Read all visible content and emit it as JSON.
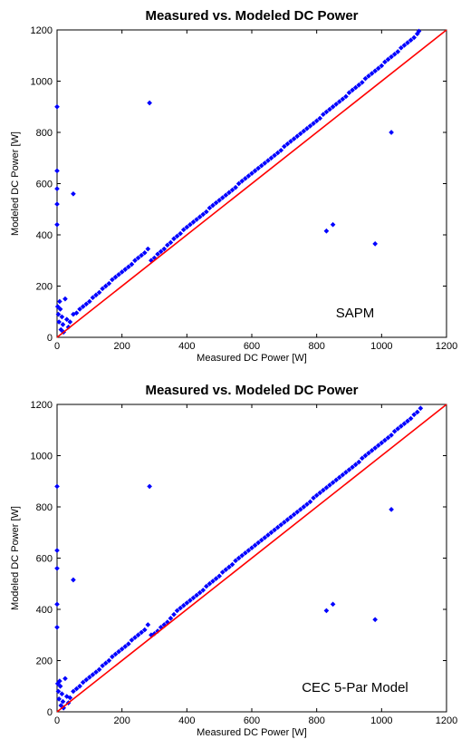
{
  "chart_data": [
    {
      "type": "scatter",
      "title": "Measured vs. Modeled DC Power",
      "xlabel": "Measured DC Power [W]",
      "ylabel": "Modeled DC Power [W]",
      "xlim": [
        0,
        1200
      ],
      "ylim": [
        0,
        1200
      ],
      "xticks": [
        "0",
        "200",
        "400",
        "600",
        "800",
        "1000",
        "1200"
      ],
      "yticks": [
        "0",
        "200",
        "400",
        "600",
        "800",
        "1000",
        "1200"
      ],
      "annotation": "SAPM",
      "grid": false,
      "colors": {
        "points": "#0000ff",
        "reference_line": "#ff0000"
      },
      "reference_line": {
        "x": [
          0,
          1200
        ],
        "y": [
          0,
          1200
        ]
      },
      "series": [
        {
          "x": [
            0,
            0,
            0,
            0,
            0,
            2,
            4,
            6,
            8,
            10,
            12,
            15,
            18,
            20,
            25,
            30,
            35,
            40,
            50,
            60,
            70,
            80,
            90,
            100,
            110,
            120,
            130,
            140,
            150,
            160,
            170,
            180,
            190,
            200,
            210,
            220,
            230,
            240,
            250,
            260,
            270,
            280,
            290,
            300,
            310,
            320,
            330,
            340,
            350,
            360,
            370,
            380,
            390,
            400,
            410,
            420,
            430,
            440,
            450,
            460,
            470,
            480,
            490,
            500,
            510,
            520,
            530,
            540,
            550,
            560,
            570,
            580,
            590,
            600,
            610,
            620,
            630,
            640,
            650,
            660,
            670,
            680,
            690,
            700,
            710,
            720,
            730,
            740,
            750,
            760,
            770,
            780,
            790,
            800,
            810,
            820,
            830,
            840,
            850,
            860,
            870,
            880,
            890,
            900,
            910,
            920,
            930,
            940,
            950,
            960,
            970,
            980,
            990,
            1000,
            1010,
            1020,
            1030,
            1040,
            1050,
            1060,
            1070,
            1080,
            1090,
            1100,
            1110,
            1115,
            285,
            50,
            980,
            830,
            850,
            1030
          ],
          "y": [
            900,
            650,
            580,
            520,
            440,
            120,
            90,
            60,
            140,
            110,
            30,
            80,
            50,
            20,
            150,
            70,
            40,
            60,
            90,
            95,
            110,
            120,
            130,
            140,
            155,
            165,
            175,
            190,
            200,
            210,
            225,
            235,
            245,
            255,
            265,
            275,
            285,
            300,
            310,
            320,
            330,
            345,
            300,
            310,
            325,
            335,
            345,
            360,
            370,
            385,
            395,
            405,
            420,
            430,
            440,
            450,
            460,
            470,
            480,
            490,
            505,
            515,
            525,
            535,
            545,
            555,
            565,
            575,
            585,
            600,
            610,
            620,
            630,
            640,
            650,
            660,
            670,
            680,
            690,
            700,
            710,
            720,
            730,
            745,
            755,
            765,
            775,
            785,
            795,
            805,
            815,
            825,
            835,
            845,
            855,
            870,
            880,
            890,
            900,
            910,
            920,
            930,
            940,
            955,
            965,
            975,
            985,
            995,
            1010,
            1020,
            1030,
            1040,
            1050,
            1060,
            1075,
            1085,
            1095,
            1105,
            1115,
            1130,
            1140,
            1150,
            1160,
            1170,
            1185,
            1195,
            915,
            560,
            365,
            415,
            440,
            800
          ]
        }
      ]
    },
    {
      "type": "scatter",
      "title": "Measured vs. Modeled DC Power",
      "xlabel": "Measured DC Power [W]",
      "ylabel": "Modeled DC Power [W]",
      "xlim": [
        0,
        1200
      ],
      "ylim": [
        0,
        1200
      ],
      "xticks": [
        "0",
        "200",
        "400",
        "600",
        "800",
        "1000",
        "1200"
      ],
      "yticks": [
        "0",
        "200",
        "400",
        "600",
        "800",
        "1000",
        "1200"
      ],
      "annotation": "CEC 5-Par Model",
      "grid": false,
      "colors": {
        "points": "#0000ff",
        "reference_line": "#ff0000"
      },
      "reference_line": {
        "x": [
          0,
          1200
        ],
        "y": [
          0,
          1200
        ]
      },
      "series": [
        {
          "x": [
            0,
            0,
            0,
            0,
            0,
            2,
            4,
            6,
            8,
            10,
            12,
            15,
            18,
            20,
            25,
            30,
            35,
            40,
            50,
            60,
            70,
            80,
            90,
            100,
            110,
            120,
            130,
            140,
            150,
            160,
            170,
            180,
            190,
            200,
            210,
            220,
            230,
            240,
            250,
            260,
            270,
            280,
            290,
            300,
            310,
            320,
            330,
            340,
            350,
            360,
            370,
            380,
            390,
            400,
            410,
            420,
            430,
            440,
            450,
            460,
            470,
            480,
            490,
            500,
            510,
            520,
            530,
            540,
            550,
            560,
            570,
            580,
            590,
            600,
            610,
            620,
            630,
            640,
            650,
            660,
            670,
            680,
            690,
            700,
            710,
            720,
            730,
            740,
            750,
            760,
            770,
            780,
            790,
            800,
            810,
            820,
            830,
            840,
            850,
            860,
            870,
            880,
            890,
            900,
            910,
            920,
            930,
            940,
            950,
            960,
            970,
            980,
            990,
            1000,
            1010,
            1020,
            1030,
            1040,
            1050,
            1060,
            1070,
            1080,
            1090,
            1100,
            1110,
            1120,
            285,
            50,
            980,
            830,
            850,
            1030
          ],
          "y": [
            880,
            630,
            560,
            420,
            330,
            110,
            80,
            50,
            120,
            100,
            25,
            70,
            40,
            15,
            130,
            60,
            35,
            55,
            80,
            90,
            100,
            115,
            125,
            135,
            145,
            155,
            165,
            180,
            190,
            200,
            215,
            225,
            235,
            245,
            255,
            265,
            280,
            290,
            300,
            310,
            320,
            340,
            300,
            305,
            315,
            330,
            340,
            350,
            365,
            380,
            395,
            405,
            415,
            425,
            435,
            445,
            455,
            465,
            475,
            490,
            500,
            510,
            520,
            530,
            545,
            555,
            565,
            575,
            590,
            600,
            610,
            620,
            630,
            640,
            650,
            660,
            670,
            680,
            690,
            700,
            710,
            720,
            730,
            740,
            750,
            760,
            770,
            780,
            790,
            800,
            810,
            820,
            835,
            845,
            855,
            865,
            875,
            885,
            895,
            905,
            915,
            925,
            935,
            945,
            955,
            965,
            975,
            990,
            1000,
            1010,
            1020,
            1030,
            1040,
            1050,
            1060,
            1070,
            1080,
            1095,
            1105,
            1115,
            1125,
            1135,
            1145,
            1160,
            1170,
            1185,
            880,
            515,
            360,
            395,
            420,
            790
          ]
        }
      ]
    }
  ]
}
